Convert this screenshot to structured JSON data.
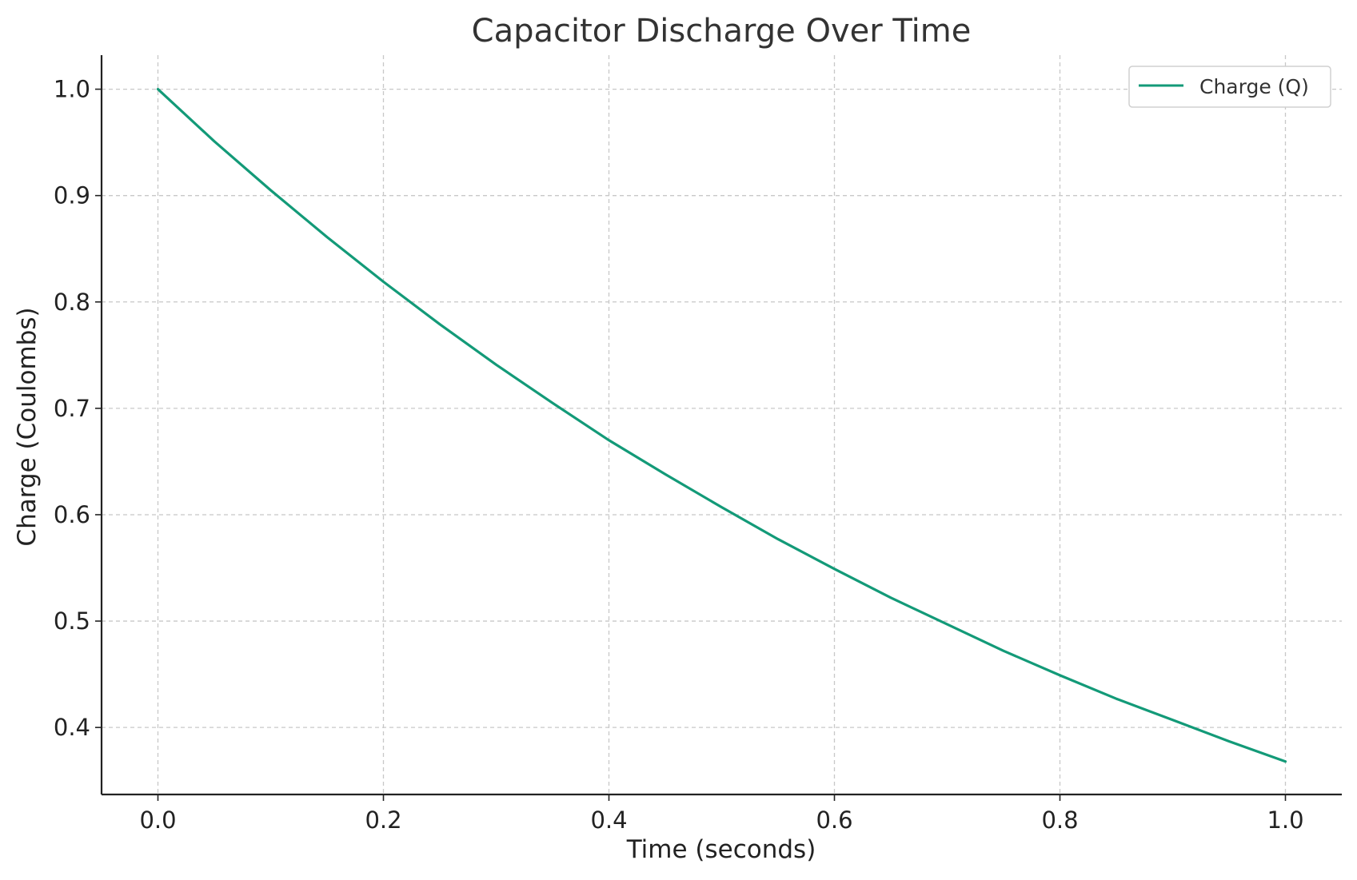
{
  "chart_data": {
    "type": "line",
    "title": "Capacitor Discharge Over Time",
    "xlabel": "Time (seconds)",
    "ylabel": "Charge (Coulombs)",
    "xlim": [
      -0.05,
      1.05
    ],
    "ylim": [
      0.337,
      1.032
    ],
    "x_ticks": [
      0.0,
      0.2,
      0.4,
      0.6,
      0.8,
      1.0
    ],
    "x_tick_labels": [
      "0.0",
      "0.2",
      "0.4",
      "0.6",
      "0.8",
      "1.0"
    ],
    "y_ticks": [
      0.4,
      0.5,
      0.6,
      0.7,
      0.8,
      0.9,
      1.0
    ],
    "y_tick_labels": [
      "0.4",
      "0.5",
      "0.6",
      "0.7",
      "0.8",
      "0.9",
      "1.0"
    ],
    "grid": true,
    "legend": {
      "position": "top-right"
    },
    "series": [
      {
        "name": "Charge (Q)",
        "color": "#139a78",
        "x": [
          0.0,
          0.05,
          0.1,
          0.15,
          0.2,
          0.25,
          0.3,
          0.35,
          0.4,
          0.45,
          0.5,
          0.55,
          0.6,
          0.65,
          0.7,
          0.75,
          0.8,
          0.85,
          0.9,
          0.95,
          1.0
        ],
        "y": [
          1.0,
          0.951,
          0.905,
          0.861,
          0.819,
          0.779,
          0.741,
          0.705,
          0.67,
          0.638,
          0.607,
          0.577,
          0.549,
          0.522,
          0.497,
          0.472,
          0.449,
          0.427,
          0.407,
          0.387,
          0.368
        ]
      }
    ]
  }
}
